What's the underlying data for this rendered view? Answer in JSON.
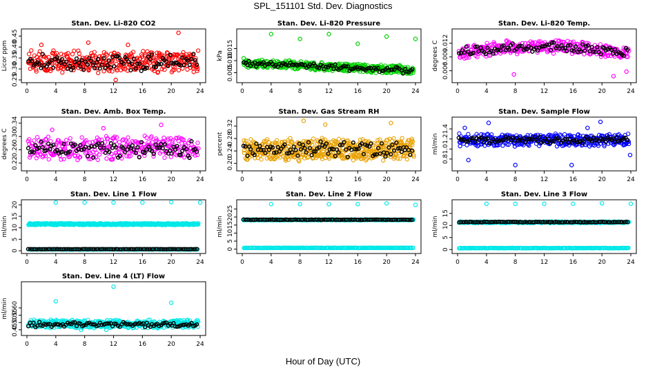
{
  "figure": {
    "title": "SPL_151101  Std. Dev. Diagnostics",
    "xlabel": "Hour of Day (UTC)"
  },
  "chart_data": [
    {
      "type": "scatter",
      "title": "Stan. Dev. Li-820 CO2",
      "ylabel": "Licor ppm",
      "xlim": [
        0,
        24
      ],
      "ylim": [
        0.25,
        0.47
      ],
      "xticks": [
        0,
        4,
        8,
        12,
        16,
        20,
        24
      ],
      "yticks": [
        {
          "v": 0.25,
          "t": "0.25"
        },
        {
          "v": 0.3,
          "t": "0.30"
        },
        {
          "v": 0.35,
          "t": "0.35"
        },
        {
          "v": 0.4,
          "t": "0.40"
        },
        {
          "v": 0.45,
          "t": "0.45"
        }
      ],
      "series": [
        {
          "color": "#FF0000",
          "density": "dots",
          "gen": {
            "n": 380,
            "base": 0.335,
            "spread": 0.03,
            "jitter": 0.04
          },
          "outliers": [
            [
              21,
              0.465
            ],
            [
              8.5,
              0.42
            ],
            [
              12.3,
              0.25
            ],
            [
              2,
              0.41
            ],
            [
              14,
              0.41
            ]
          ]
        },
        {
          "color": "#000000",
          "density": "sparse",
          "gen": {
            "n": 95,
            "base": 0.33,
            "spread": 0.025,
            "jitter": 0.03
          }
        }
      ]
    },
    {
      "type": "scatter",
      "title": "Stan. Dev. Li-820 Pressure",
      "ylabel": "kPa",
      "xlim": [
        0,
        24
      ],
      "ylim": [
        0.002,
        0.022
      ],
      "xticks": [
        0,
        4,
        8,
        12,
        16,
        20,
        24
      ],
      "yticks": [
        {
          "v": 0.005,
          "t": "0.005"
        },
        {
          "v": 0.01,
          "t": "0.010"
        },
        {
          "v": 0.015,
          "t": "0.015"
        }
      ],
      "series": [
        {
          "color": "#00D000",
          "density": "band",
          "gen": {
            "n": 450,
            "base": 0.0075,
            "spread": 0.001,
            "jitter": 0.0014,
            "slope": -0.00012
          },
          "outliers": [
            [
              4,
              0.021
            ],
            [
              8,
              0.019
            ],
            [
              12,
              0.021
            ],
            [
              16,
              0.017
            ],
            [
              20,
              0.02
            ],
            [
              24,
              0.019
            ],
            [
              0.2,
              0.011
            ]
          ]
        },
        {
          "color": "#000000",
          "density": "sparse",
          "gen": {
            "n": 95,
            "base": 0.0073,
            "spread": 0.0008,
            "jitter": 0.0009,
            "slope": -0.00013
          }
        }
      ]
    },
    {
      "type": "scatter",
      "title": "Stan. Dev. Li-820 Temp.",
      "ylabel": "degrees C",
      "xlim": [
        0,
        24
      ],
      "ylim": [
        0.004,
        0.0145
      ],
      "xticks": [
        0,
        4,
        8,
        12,
        16,
        20,
        24
      ],
      "yticks": [
        {
          "v": 0.006,
          "t": "0.006"
        },
        {
          "v": 0.009,
          "t": "0.009"
        },
        {
          "v": 0.012,
          "t": "0.012"
        }
      ],
      "series": [
        {
          "color": "#FF00FF",
          "density": "dots",
          "gen": {
            "n": 320,
            "base": 0.0105,
            "spread": 0.001,
            "jitter": 0.0012,
            "hump": 0.0015
          },
          "outliers": [
            [
              7.8,
              0.0052
            ],
            [
              21.6,
              0.0048
            ],
            [
              23.4,
              0.0058
            ]
          ]
        },
        {
          "color": "#000000",
          "density": "sparse",
          "gen": {
            "n": 95,
            "base": 0.0105,
            "spread": 0.0008,
            "jitter": 0.0009,
            "hump": 0.0014
          }
        }
      ]
    },
    {
      "type": "scatter",
      "title": "Stan. Dev. Amb. Box Temp.",
      "ylabel": "degrees C",
      "xlim": [
        0,
        24
      ],
      "ylim": [
        0.205,
        0.35
      ],
      "xticks": [
        0,
        4,
        8,
        12,
        16,
        20,
        24
      ],
      "yticks": [
        {
          "v": 0.22,
          "t": "0.22"
        },
        {
          "v": 0.26,
          "t": "0.26"
        },
        {
          "v": 0.3,
          "t": "0.30"
        },
        {
          "v": 0.34,
          "t": "0.34"
        }
      ],
      "series": [
        {
          "color": "#FF00FF",
          "density": "dots",
          "gen": {
            "n": 320,
            "base": 0.265,
            "spread": 0.02,
            "jitter": 0.03
          },
          "outliers": [
            [
              18.6,
              0.335
            ],
            [
              10.6,
              0.325
            ],
            [
              3.5,
              0.32
            ]
          ]
        },
        {
          "color": "#000000",
          "density": "sparse",
          "gen": {
            "n": 95,
            "base": 0.26,
            "spread": 0.018,
            "jitter": 0.02
          }
        }
      ]
    },
    {
      "type": "scatter",
      "title": "Stan. Dev. Gas Stream RH",
      "ylabel": "percent",
      "xlim": [
        0,
        24
      ],
      "ylim": [
        0.185,
        0.34
      ],
      "xticks": [
        0,
        4,
        8,
        12,
        16,
        20,
        24
      ],
      "yticks": [
        {
          "v": 0.2,
          "t": "0.20"
        },
        {
          "v": 0.24,
          "t": "0.24"
        },
        {
          "v": 0.28,
          "t": "0.28"
        },
        {
          "v": 0.32,
          "t": "0.32"
        }
      ],
      "series": [
        {
          "color": "#E8A000",
          "density": "band",
          "gen": {
            "n": 520,
            "base": 0.245,
            "spread": 0.018,
            "jitter": 0.03
          },
          "outliers": [
            [
              8.5,
              0.337
            ],
            [
              11.5,
              0.325
            ],
            [
              20.6,
              0.33
            ]
          ]
        },
        {
          "color": "#000000",
          "density": "sparse",
          "gen": {
            "n": 95,
            "base": 0.245,
            "spread": 0.015,
            "jitter": 0.02
          }
        }
      ]
    },
    {
      "type": "scatter",
      "title": "Stan. Dev. Sample Flow",
      "ylabel": "ml/min",
      "xlim": [
        0,
        24
      ],
      "ylim": [
        0.62,
        1.58
      ],
      "xticks": [
        0,
        4,
        8,
        12,
        16,
        20,
        24
      ],
      "yticks": [
        {
          "v": 0.8,
          "t": "0.8"
        },
        {
          "v": 1.0,
          "t": "1.0"
        },
        {
          "v": 1.2,
          "t": "1.2"
        },
        {
          "v": 1.4,
          "t": "1.4"
        }
      ],
      "series": [
        {
          "color": "#0000FF",
          "density": "dots",
          "gen": {
            "n": 380,
            "base": 1.18,
            "spread": 0.05,
            "jitter": 0.11
          },
          "outliers": [
            [
              4.3,
              1.52
            ],
            [
              8,
              0.68
            ],
            [
              15.8,
              0.68
            ],
            [
              19.8,
              1.54
            ],
            [
              23.9,
              0.88
            ],
            [
              1.5,
              0.78
            ],
            [
              1,
              1.42
            ],
            [
              18,
              1.42
            ]
          ]
        },
        {
          "color": "#000000",
          "density": "sparse",
          "gen": {
            "n": 95,
            "base": 1.18,
            "spread": 0.04,
            "jitter": 0.05
          }
        }
      ]
    },
    {
      "type": "scatter",
      "title": "Stan. Dev. Line 1 Flow",
      "ylabel": "ml/min",
      "xlim": [
        0,
        24
      ],
      "ylim": [
        0,
        21
      ],
      "xticks": [
        0,
        4,
        8,
        12,
        16,
        20,
        24
      ],
      "yticks": [
        {
          "v": 0,
          "t": "0"
        },
        {
          "v": 5,
          "t": "5"
        },
        {
          "v": 10,
          "t": "10"
        },
        {
          "v": 15,
          "t": "15"
        },
        {
          "v": 20,
          "t": "20"
        }
      ],
      "series": [
        {
          "color": "#00E8E8",
          "density": "band",
          "gen": {
            "n": 520,
            "base": 11.6,
            "spread": 0.15,
            "jitter": 0.35
          },
          "outliers": [
            [
              4,
              21
            ],
            [
              8,
              21
            ],
            [
              12,
              21
            ],
            [
              16,
              21
            ],
            [
              20,
              21.2
            ],
            [
              24,
              21
            ]
          ]
        },
        {
          "color": "#00E8E8",
          "density": "band",
          "gen": {
            "n": 200,
            "base": 0.6,
            "spread": 0.03,
            "jitter": 0.08
          }
        },
        {
          "color": "#000000",
          "density": "sparse",
          "gen": {
            "n": 95,
            "base": 0.7,
            "spread": 0.02,
            "jitter": 0.05
          }
        }
      ]
    },
    {
      "type": "scatter",
      "title": "Stan. Dev. Line 2 Flow",
      "ylabel": "ml/min",
      "xlim": [
        0,
        24
      ],
      "ylim": [
        -1,
        29
      ],
      "xticks": [
        0,
        4,
        8,
        12,
        16,
        20,
        24
      ],
      "yticks": [
        {
          "v": 0,
          "t": "0"
        },
        {
          "v": 5,
          "t": "5"
        },
        {
          "v": 10,
          "t": "10"
        },
        {
          "v": 15,
          "t": "15"
        },
        {
          "v": 20,
          "t": "20"
        },
        {
          "v": 25,
          "t": "25"
        }
      ],
      "series": [
        {
          "color": "#00E8E8",
          "density": "band",
          "gen": {
            "n": 300,
            "base": 18.2,
            "spread": 0.1,
            "jitter": 0.25
          },
          "outliers": [
            [
              4,
              28
            ],
            [
              8,
              28
            ],
            [
              12,
              28
            ],
            [
              16,
              28
            ],
            [
              20,
              28.5
            ],
            [
              24,
              27.5
            ]
          ]
        },
        {
          "color": "#00E8E8",
          "density": "band",
          "gen": {
            "n": 200,
            "base": 0.8,
            "spread": 0.03,
            "jitter": 0.08
          }
        },
        {
          "color": "#000000",
          "density": "sparse",
          "gen": {
            "n": 95,
            "base": 18.3,
            "spread": 0.08,
            "jitter": 0.12
          }
        }
      ]
    },
    {
      "type": "scatter",
      "title": "Stan. Dev. Line 3 Flow",
      "ylabel": "ml/min",
      "xlim": [
        0,
        24
      ],
      "ylim": [
        -0.5,
        19.5
      ],
      "xticks": [
        0,
        4,
        8,
        12,
        16,
        20,
        24
      ],
      "yticks": [
        {
          "v": 0,
          "t": "0"
        },
        {
          "v": 5,
          "t": "5"
        },
        {
          "v": 10,
          "t": "10"
        },
        {
          "v": 15,
          "t": "15"
        }
      ],
      "series": [
        {
          "color": "#00E8E8",
          "density": "band",
          "gen": {
            "n": 300,
            "base": 11.3,
            "spread": 0.12,
            "jitter": 0.3
          },
          "outliers": [
            [
              4,
              19
            ],
            [
              8,
              19
            ],
            [
              12,
              19
            ],
            [
              16,
              19
            ],
            [
              20,
              19.2
            ],
            [
              24,
              19
            ]
          ]
        },
        {
          "color": "#00E8E8",
          "density": "band",
          "gen": {
            "n": 200,
            "base": 0.6,
            "spread": 0.03,
            "jitter": 0.08
          }
        },
        {
          "color": "#000000",
          "density": "sparse",
          "gen": {
            "n": 95,
            "base": 11.4,
            "spread": 0.08,
            "jitter": 0.12
          }
        }
      ]
    },
    {
      "type": "scatter",
      "title": "Stan. Dev. Line 4 (LT) Flow",
      "ylabel": "ml/min",
      "xlim": [
        0,
        24
      ],
      "ylim": [
        0.43,
        0.76
      ],
      "xticks": [
        0,
        4,
        8,
        12,
        16,
        20,
        24
      ],
      "yticks": [
        {
          "v": 0.45,
          "t": "0.45"
        },
        {
          "v": 0.5,
          "t": "0.50"
        },
        {
          "v": 0.55,
          "t": "0.55"
        },
        {
          "v": 0.6,
          "t": "0.60"
        }
      ],
      "series": [
        {
          "color": "#00E8E8",
          "density": "band",
          "gen": {
            "n": 420,
            "base": 0.49,
            "spread": 0.01,
            "jitter": 0.025
          },
          "outliers": [
            [
              12,
              0.745
            ],
            [
              4,
              0.645
            ],
            [
              20,
              0.635
            ],
            [
              7.5,
              0.45
            ],
            [
              11,
              0.45
            ]
          ]
        },
        {
          "color": "#000000",
          "density": "sparse",
          "gen": {
            "n": 95,
            "base": 0.485,
            "spread": 0.01,
            "jitter": 0.015
          }
        }
      ]
    }
  ]
}
